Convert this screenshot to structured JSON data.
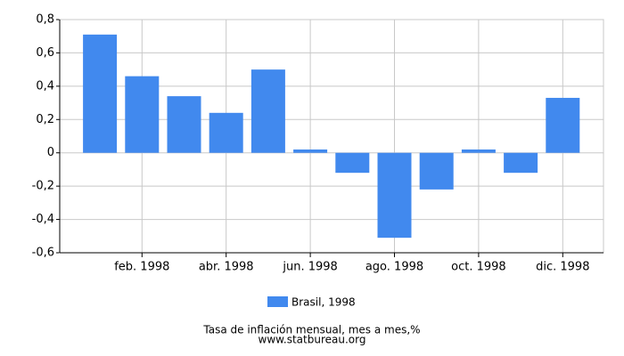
{
  "chart_data": {
    "type": "bar",
    "categories": [
      null,
      "feb. 1998",
      null,
      "abr. 1998",
      null,
      "jun. 1998",
      null,
      "ago. 1998",
      null,
      "oct. 1998",
      null,
      "dic. 1998"
    ],
    "series": [
      {
        "name": "Brasil, 1998",
        "color": "#4189ee",
        "values": [
          0.71,
          0.46,
          0.34,
          0.24,
          0.5,
          0.02,
          -0.12,
          -0.51,
          -0.22,
          0.02,
          -0.12,
          0.33
        ]
      }
    ],
    "ylim": [
      -0.6,
      0.8
    ],
    "yticks": [
      {
        "value": -0.6,
        "label": "-0,6"
      },
      {
        "value": -0.4,
        "label": "-0,4"
      },
      {
        "value": -0.2,
        "label": "-0,2"
      },
      0,
      {
        "value": 0.2,
        "label": "0,2"
      },
      {
        "value": 0.4,
        "label": "0,4"
      },
      {
        "value": 0.6,
        "label": "0,6"
      },
      {
        "value": 0.8,
        "label": "0,8"
      }
    ],
    "grid": true,
    "footer": [
      "Tasa de inflación mensual, mes a mes,%",
      "www.statbureau.org"
    ]
  }
}
